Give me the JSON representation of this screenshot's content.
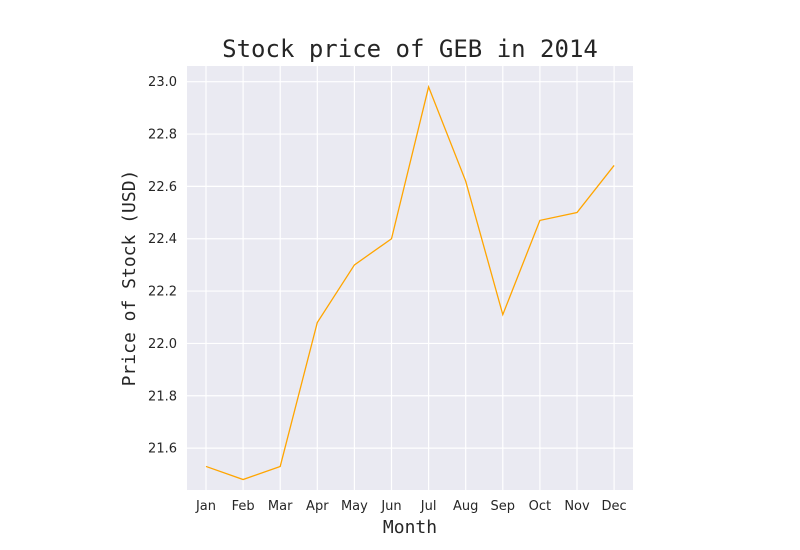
{
  "chart_data": {
    "type": "line",
    "title": "Stock price of GEB in 2014",
    "xlabel": "Month",
    "ylabel": "Price of Stock (USD)",
    "categories": [
      "Jan",
      "Feb",
      "Mar",
      "Apr",
      "May",
      "Jun",
      "Jul",
      "Aug",
      "Sep",
      "Oct",
      "Nov",
      "Dec"
    ],
    "series": [
      {
        "values": [
          21.53,
          21.48,
          21.53,
          22.08,
          22.3,
          22.4,
          22.98,
          22.62,
          22.11,
          22.47,
          22.5,
          22.68
        ],
        "color": "#ffa500"
      }
    ],
    "yticks": [
      21.6,
      21.8,
      22.0,
      22.2,
      22.4,
      22.6,
      22.8,
      23.0
    ],
    "ytick_labels": [
      "21.6",
      "21.8",
      "22.0",
      "22.2",
      "22.4",
      "22.6",
      "22.8",
      "23.0"
    ],
    "ylim": [
      21.44,
      23.06
    ],
    "grid": true,
    "background": "#eaeaf2",
    "grid_color": "#ffffff"
  }
}
